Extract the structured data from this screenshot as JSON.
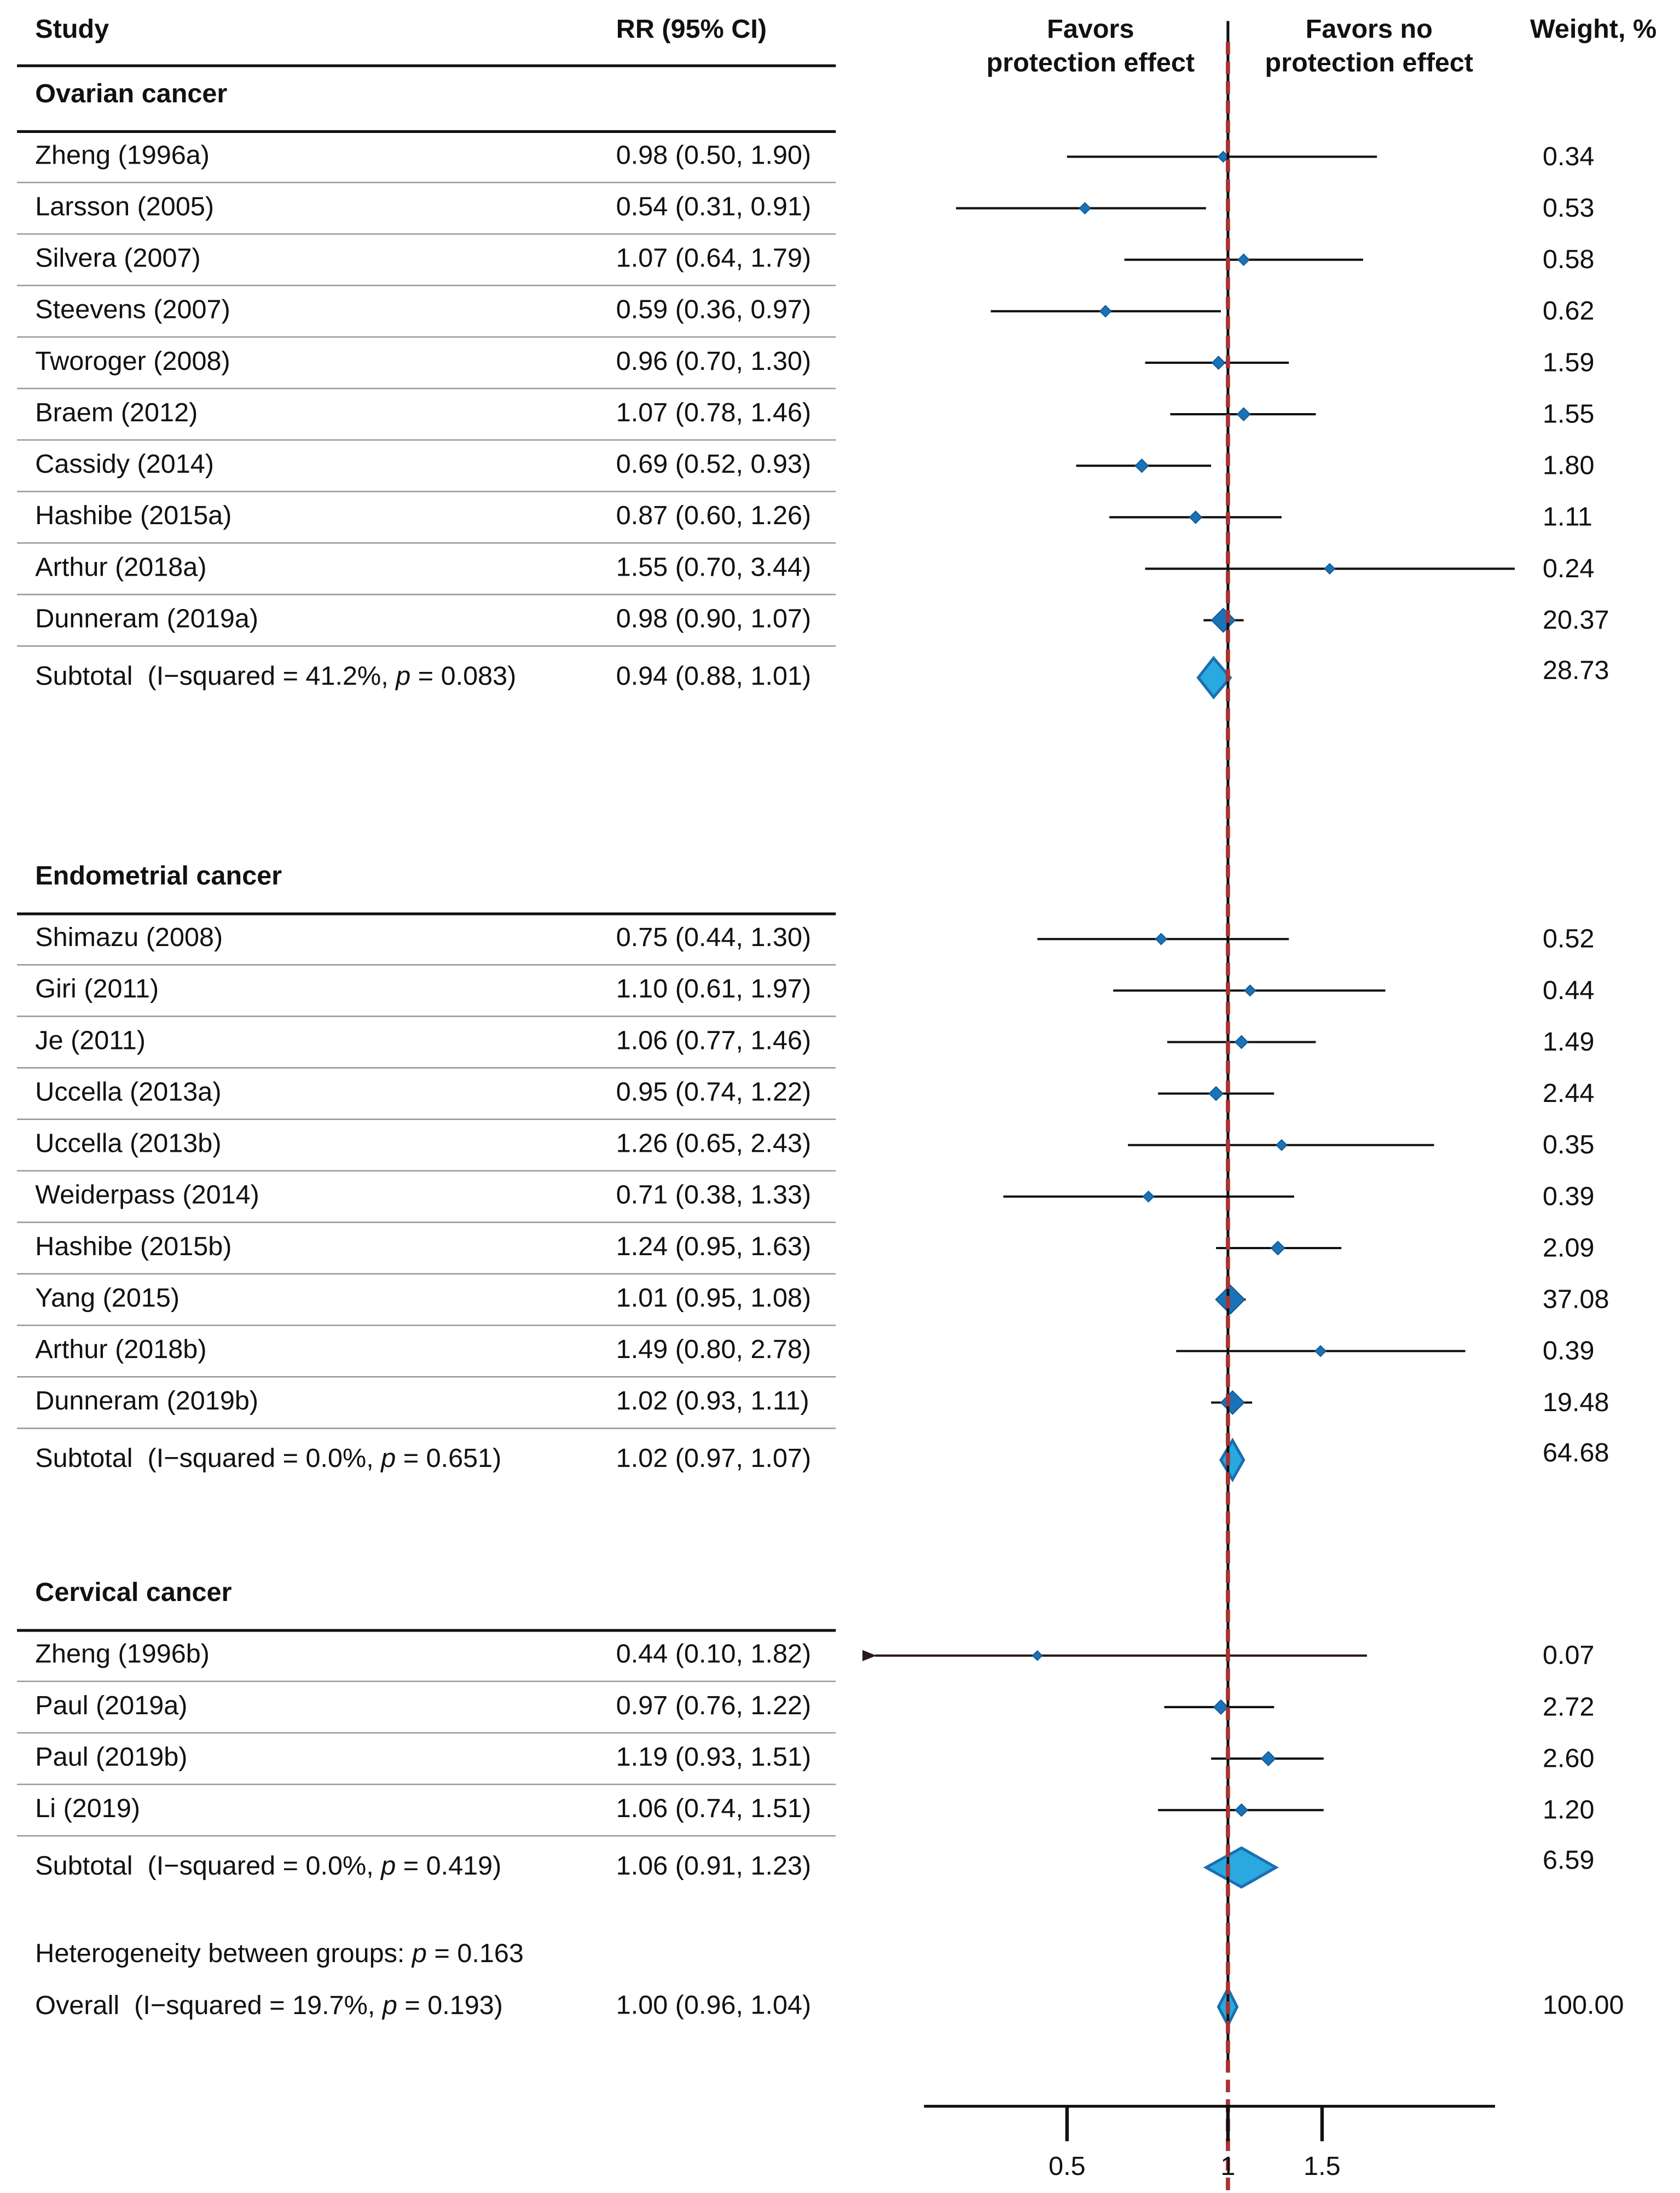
{
  "chart_data": {
    "type": "forest",
    "log_scale": true,
    "xlim": [
      0.27,
      3.16
    ],
    "xticks": [
      0.5,
      1,
      1.5
    ],
    "null_line": 1,
    "marker_color": "#1a73b8",
    "subtotal_color": "#2aa8e0",
    "overall_line_color": "#a83232",
    "headers": {
      "study": "Study",
      "estimate": "RR (95% CI)",
      "left_label": [
        "Favors",
        "protection effect"
      ],
      "right_label": [
        "Favors no",
        "protection effect"
      ],
      "weight": "Weight, %"
    },
    "groups": [
      {
        "name": "Ovarian cancer",
        "studies": [
          "Zheng (1996a)",
          "Larsson (2005)",
          "Silvera (2007)",
          "Steevens (2007)",
          "Tworoger (2008)",
          "Braem (2012)",
          "Cassidy (2014)",
          "Hashibe (2015a)",
          "Arthur (2018a)",
          "Dunneram (2019a)"
        ],
        "rr": [
          0.98,
          0.54,
          1.07,
          0.59,
          0.96,
          1.07,
          0.69,
          0.87,
          1.55,
          0.98
        ],
        "lower": [
          0.5,
          0.31,
          0.64,
          0.36,
          0.7,
          0.78,
          0.52,
          0.6,
          0.7,
          0.9
        ],
        "upper": [
          1.9,
          0.91,
          1.79,
          0.97,
          1.3,
          1.46,
          0.93,
          1.26,
          3.44,
          1.07
        ],
        "rr_labels": [
          "0.98 (0.50, 1.90)",
          "0.54 (0.31, 0.91)",
          "1.07 (0.64, 1.79)",
          "0.59 (0.36, 0.97)",
          "0.96 (0.70, 1.30)",
          "1.07 (0.78, 1.46)",
          "0.69 (0.52, 0.93)",
          "0.87 (0.60, 1.26)",
          "1.55 (0.70, 3.44)",
          "0.98 (0.90, 1.07)"
        ],
        "weights": [
          0.34,
          0.53,
          0.58,
          0.62,
          1.59,
          1.55,
          1.8,
          1.11,
          0.24,
          20.37
        ],
        "weight_labels": [
          "0.34",
          "0.53",
          "0.58",
          "0.62",
          "1.59",
          "1.55",
          "1.80",
          "1.11",
          "0.24",
          "20.37"
        ],
        "subtotal": {
          "text_before": "Subtotal  (I−squared = 41.2%, ",
          "p": "p",
          "text_after": " = 0.083)",
          "rr": 0.94,
          "lower": 0.88,
          "upper": 1.01,
          "rr_label": "0.94 (0.88, 1.01)",
          "weight": 28.73,
          "weight_label": "28.73"
        }
      },
      {
        "name": "Endometrial cancer",
        "studies": [
          "Shimazu (2008)",
          "Giri (2011)",
          "Je (2011)",
          "Uccella (2013a)",
          "Uccella (2013b)",
          "Weiderpass (2014)",
          "Hashibe (2015b)",
          "Yang (2015)",
          "Arthur (2018b)",
          "Dunneram (2019b)"
        ],
        "rr": [
          0.75,
          1.1,
          1.06,
          0.95,
          1.26,
          0.71,
          1.24,
          1.01,
          1.49,
          1.02
        ],
        "lower": [
          0.44,
          0.61,
          0.77,
          0.74,
          0.65,
          0.38,
          0.95,
          0.95,
          0.8,
          0.93
        ],
        "upper": [
          1.3,
          1.97,
          1.46,
          1.22,
          2.43,
          1.33,
          1.63,
          1.08,
          2.78,
          1.11
        ],
        "rr_labels": [
          "0.75 (0.44, 1.30)",
          "1.10 (0.61, 1.97)",
          "1.06 (0.77, 1.46)",
          "0.95 (0.74, 1.22)",
          "1.26 (0.65, 2.43)",
          "0.71 (0.38, 1.33)",
          "1.24 (0.95, 1.63)",
          "1.01 (0.95, 1.08)",
          "1.49 (0.80, 2.78)",
          "1.02 (0.93, 1.11)"
        ],
        "weights": [
          0.52,
          0.44,
          1.49,
          2.44,
          0.35,
          0.39,
          2.09,
          37.08,
          0.39,
          19.48
        ],
        "weight_labels": [
          "0.52",
          "0.44",
          "1.49",
          "2.44",
          "0.35",
          "0.39",
          "2.09",
          "37.08",
          "0.39",
          "19.48"
        ],
        "subtotal": {
          "text_before": "Subtotal  (I−squared = 0.0%, ",
          "p": "p",
          "text_after": " = 0.651)",
          "rr": 1.02,
          "lower": 0.97,
          "upper": 1.07,
          "rr_label": "1.02 (0.97, 1.07)",
          "weight": 64.68,
          "weight_label": "64.68"
        }
      },
      {
        "name": "Cervical cancer",
        "studies": [
          "Zheng (1996b)",
          "Paul (2019a)",
          "Paul (2019b)",
          "Li (2019)"
        ],
        "rr": [
          0.44,
          0.97,
          1.19,
          1.06
        ],
        "lower": [
          0.1,
          0.76,
          0.93,
          0.74
        ],
        "upper": [
          1.82,
          1.22,
          1.51,
          1.51
        ],
        "rr_labels": [
          "0.44 (0.10, 1.82)",
          "0.97 (0.76, 1.22)",
          "1.19 (0.93, 1.51)",
          "1.06 (0.74, 1.51)"
        ],
        "weights": [
          0.07,
          2.72,
          2.6,
          1.2
        ],
        "weight_labels": [
          "0.07",
          "2.72",
          "2.60",
          "1.20"
        ],
        "subtotal": {
          "text_before": "Subtotal  (I−squared = 0.0%, ",
          "p": "p",
          "text_after": " = 0.419)",
          "rr": 1.06,
          "lower": 0.91,
          "upper": 1.23,
          "rr_label": "1.06 (0.91, 1.23)",
          "weight": 6.59,
          "weight_label": "6.59"
        }
      }
    ],
    "heterogeneity": {
      "text_before": "Heterogeneity between groups: ",
      "p": "p",
      "text_after": " = 0.163"
    },
    "overall": {
      "text_before": "Overall  (I−squared = 19.7%, ",
      "p": "p",
      "text_after": " = 0.193)",
      "rr": 1.0,
      "lower": 0.96,
      "upper": 1.04,
      "rr_label": "1.00 (0.96, 1.04)",
      "weight": 100,
      "weight_label": "100.00"
    }
  }
}
